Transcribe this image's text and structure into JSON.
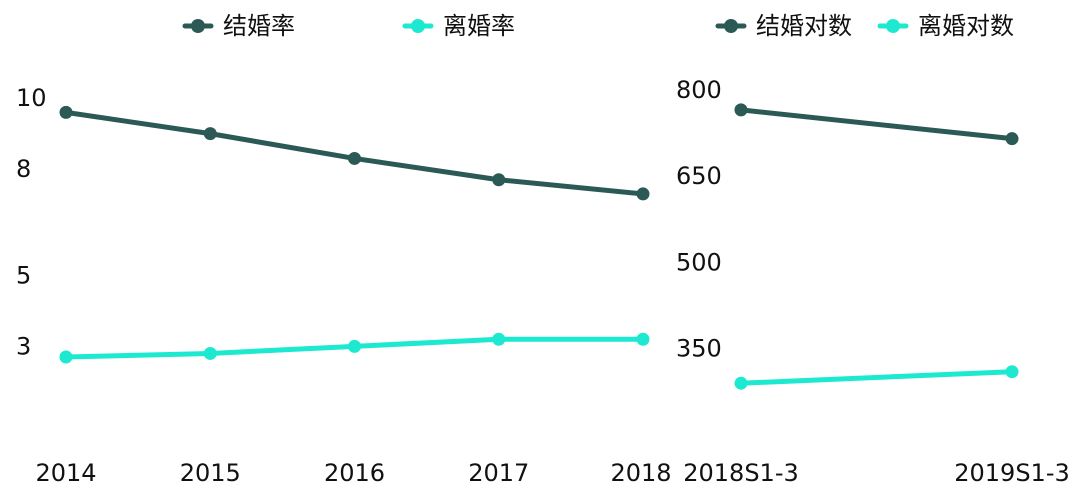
{
  "chart_data": [
    {
      "type": "line",
      "categories": [
        "2014",
        "2015",
        "2016",
        "2017",
        "2018"
      ],
      "series": [
        {
          "name": "结婚率",
          "values": [
            9.6,
            9.0,
            8.3,
            7.7,
            7.3
          ],
          "color": "#2b5a56"
        },
        {
          "name": "离婚率",
          "values": [
            2.7,
            2.8,
            3.0,
            3.2,
            3.2
          ],
          "color": "#1de9d0"
        }
      ],
      "y_ticks": [
        "10",
        "8",
        "5",
        "3"
      ],
      "ylim": [
        0.5,
        10.4
      ],
      "grid": false,
      "legend_position": "top"
    },
    {
      "type": "line",
      "categories": [
        "2018S1-3",
        "2019S1-3"
      ],
      "series": [
        {
          "name": "结婚对数",
          "values": [
            765,
            715
          ],
          "color": "#2b5a56"
        },
        {
          "name": "离婚对数",
          "values": [
            290,
            310
          ],
          "color": "#1de9d0"
        }
      ],
      "y_ticks": [
        "800",
        "650",
        "500",
        "350"
      ],
      "ylim": [
        200,
        810
      ],
      "grid": false,
      "legend_position": "top"
    }
  ]
}
